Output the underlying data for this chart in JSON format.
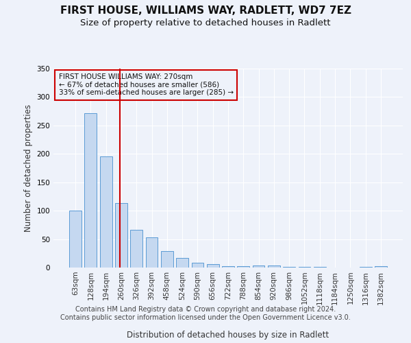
{
  "title": "FIRST HOUSE, WILLIAMS WAY, RADLETT, WD7 7EZ",
  "subtitle": "Size of property relative to detached houses in Radlett",
  "xlabel": "Distribution of detached houses by size in Radlett",
  "ylabel": "Number of detached properties",
  "bar_color": "#c5d8f0",
  "bar_edge_color": "#5b9bd5",
  "categories": [
    "63sqm",
    "128sqm",
    "194sqm",
    "260sqm",
    "326sqm",
    "392sqm",
    "458sqm",
    "524sqm",
    "590sqm",
    "656sqm",
    "722sqm",
    "788sqm",
    "854sqm",
    "920sqm",
    "986sqm",
    "1052sqm",
    "1118sqm",
    "1184sqm",
    "1250sqm",
    "1316sqm",
    "1382sqm"
  ],
  "values": [
    100,
    271,
    196,
    114,
    66,
    53,
    29,
    17,
    9,
    6,
    3,
    3,
    4,
    4,
    1,
    1,
    1,
    0,
    0,
    1,
    2
  ],
  "vline_xindex": 2.9,
  "vline_color": "#cc0000",
  "annotation_line1": "FIRST HOUSE WILLIAMS WAY: 270sqm",
  "annotation_line2": "← 67% of detached houses are smaller (586)",
  "annotation_line3": "33% of semi-detached houses are larger (285) →",
  "annotation_box_color": "#cc0000",
  "ylim_max": 350,
  "yticks": [
    0,
    50,
    100,
    150,
    200,
    250,
    300,
    350
  ],
  "footer_text": "Contains HM Land Registry data © Crown copyright and database right 2024.\nContains public sector information licensed under the Open Government Licence v3.0.",
  "background_color": "#eef2fa",
  "grid_color": "#ffffff",
  "title_fontsize": 11,
  "subtitle_fontsize": 9.5,
  "axis_label_fontsize": 8.5,
  "tick_fontsize": 7.5,
  "footer_fontsize": 7
}
